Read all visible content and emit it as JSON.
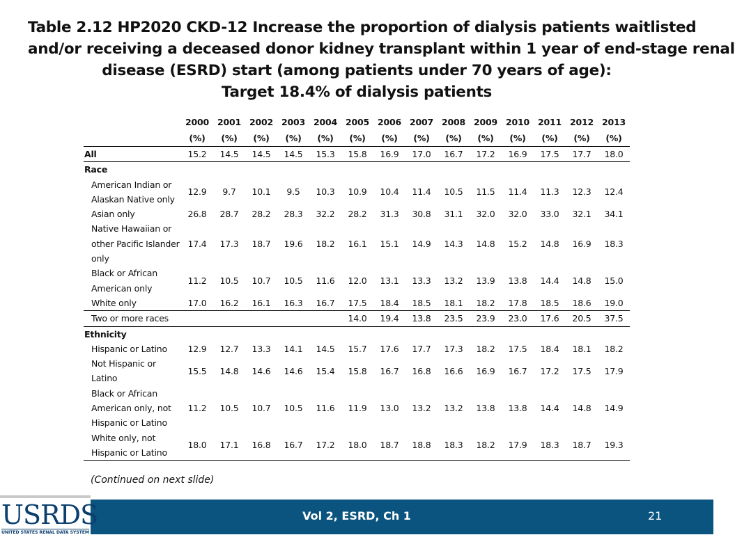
{
  "title": {
    "line1": "Table 2.12  HP2020 CKD-12 Increase the proportion of dialysis patients waitlisted",
    "line2": "and/or receiving a deceased donor kidney transplant within 1 year of end-stage renal",
    "line3": "disease (ESRD) start (among patients under 70 years of age):",
    "line4": "Target 18.4% of dialysis patients"
  },
  "table": {
    "years": [
      "2000",
      "2001",
      "2002",
      "2003",
      "2004",
      "2005",
      "2006",
      "2007",
      "2008",
      "2009",
      "2010",
      "2011",
      "2012",
      "2013"
    ],
    "unit": "(%)",
    "all": {
      "label": "All",
      "values": [
        "15.2",
        "14.5",
        "14.5",
        "14.5",
        "15.3",
        "15.8",
        "16.9",
        "17.0",
        "16.7",
        "17.2",
        "16.9",
        "17.5",
        "17.7",
        "18.0"
      ]
    },
    "race": {
      "label": "Race",
      "rows": [
        {
          "label": "American Indian or Alaskan Native only",
          "values": [
            "12.9",
            "9.7",
            "10.1",
            "9.5",
            "10.3",
            "10.9",
            "10.4",
            "11.4",
            "10.5",
            "11.5",
            "11.4",
            "11.3",
            "12.3",
            "12.4"
          ]
        },
        {
          "label": "Asian only",
          "values": [
            "26.8",
            "28.7",
            "28.2",
            "28.3",
            "32.2",
            "28.2",
            "31.3",
            "30.8",
            "31.1",
            "32.0",
            "32.0",
            "33.0",
            "32.1",
            "34.1"
          ]
        },
        {
          "label": "Native Hawaiian or other Pacific Islander only",
          "values": [
            "17.4",
            "17.3",
            "18.7",
            "19.6",
            "18.2",
            "16.1",
            "15.1",
            "14.9",
            "14.3",
            "14.8",
            "15.2",
            "14.8",
            "16.9",
            "18.3"
          ]
        },
        {
          "label": "Black or African American only",
          "values": [
            "11.2",
            "10.5",
            "10.7",
            "10.5",
            "11.6",
            "12.0",
            "13.1",
            "13.3",
            "13.2",
            "13.9",
            "13.8",
            "14.4",
            "14.8",
            "15.0"
          ]
        },
        {
          "label": "White only",
          "values": [
            "17.0",
            "16.2",
            "16.1",
            "16.3",
            "16.7",
            "17.5",
            "18.4",
            "18.5",
            "18.1",
            "18.2",
            "17.8",
            "18.5",
            "18.6",
            "19.0"
          ]
        },
        {
          "label": "Two or more races",
          "values": [
            "",
            "",
            "",
            "",
            "",
            "14.0",
            "19.4",
            "13.8",
            "23.5",
            "23.9",
            "23.0",
            "17.6",
            "20.5",
            "37.5"
          ]
        }
      ]
    },
    "ethnicity": {
      "label": "Ethnicity",
      "rows": [
        {
          "label": "Hispanic or Latino",
          "values": [
            "12.9",
            "12.7",
            "13.3",
            "14.1",
            "14.5",
            "15.7",
            "17.6",
            "17.7",
            "17.3",
            "18.2",
            "17.5",
            "18.4",
            "18.1",
            "18.2"
          ]
        },
        {
          "label": "Not Hispanic or Latino",
          "values": [
            "15.5",
            "14.8",
            "14.6",
            "14.6",
            "15.4",
            "15.8",
            "16.7",
            "16.8",
            "16.6",
            "16.9",
            "16.7",
            "17.2",
            "17.5",
            "17.9"
          ]
        },
        {
          "label": "Black or African American only, not Hispanic or Latino",
          "values": [
            "11.2",
            "10.5",
            "10.7",
            "10.5",
            "11.6",
            "11.9",
            "13.0",
            "13.2",
            "13.2",
            "13.8",
            "13.8",
            "14.4",
            "14.8",
            "14.9"
          ]
        },
        {
          "label": "White only, not Hispanic or Latino",
          "values": [
            "18.0",
            "17.1",
            "16.8",
            "16.7",
            "17.2",
            "18.0",
            "18.7",
            "18.8",
            "18.3",
            "18.2",
            "17.9",
            "18.3",
            "18.7",
            "19.3"
          ]
        }
      ]
    }
  },
  "continued_note": "(Continued on next slide)",
  "footer": {
    "logo_text": "USRDS",
    "logo_subtitle": "UNITED STATES RENAL DATA SYSTEM",
    "center_text": "Vol 2, ESRD, Ch 1",
    "page_number": "21"
  },
  "colors": {
    "footer_bg": "#0b547f",
    "logo_color": "#0b3f6e"
  }
}
